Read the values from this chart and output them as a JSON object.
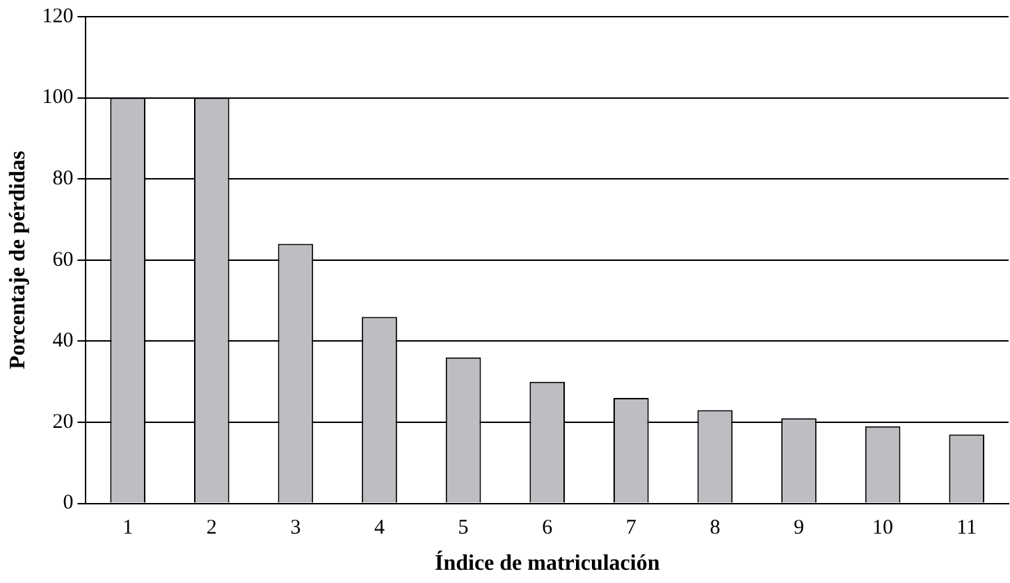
{
  "chart_data": {
    "type": "bar",
    "xlabel": "Índice de matriculación",
    "ylabel": "Porcentaje de pérdidas",
    "categories": [
      "1",
      "2",
      "3",
      "4",
      "5",
      "6",
      "7",
      "8",
      "9",
      "10",
      "11"
    ],
    "values": [
      100,
      100,
      64,
      46,
      36,
      30,
      26,
      23,
      21,
      19,
      17
    ],
    "color": "#bdbec2",
    "ylim": [
      0,
      120
    ],
    "yticks": [
      0,
      20,
      40,
      60,
      80,
      100,
      120
    ],
    "grid": "y",
    "legend": false
  }
}
